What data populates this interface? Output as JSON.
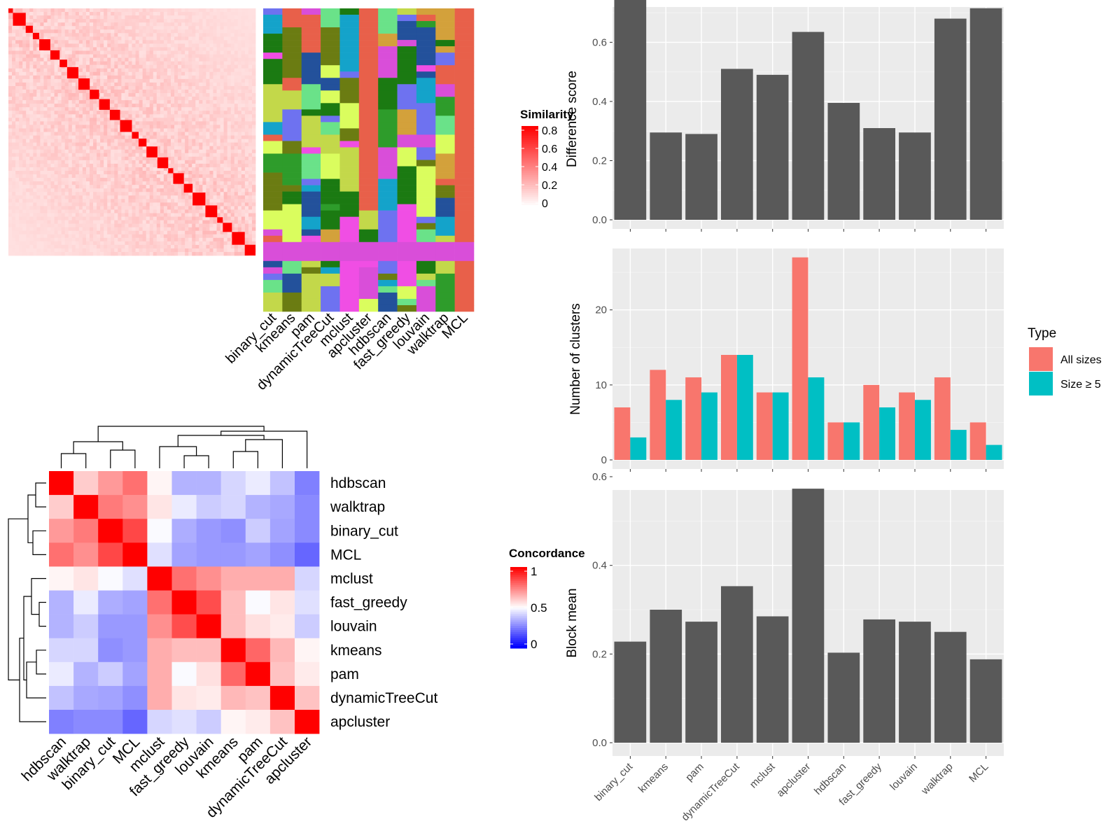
{
  "colors": {
    "panel_bg": "#ebebeb",
    "grid_major": "#ffffff",
    "bar_dark": "#595959",
    "all_sizes": "#f8766d",
    "size_ge5": "#00bfc4",
    "sim_high": "#ff0000",
    "sim_low": "#ffffff",
    "conc_high": "#ff0000",
    "conc_mid": "#ffffff",
    "conc_low": "#0000ff",
    "cluster_palette": [
      "#e8604a",
      "#6b7c12",
      "#d94ed9",
      "#23519b",
      "#6ae289",
      "#2e9c2b",
      "#dafd5e",
      "#f04ee4",
      "#6e72f0",
      "#d3a13b",
      "#14a3ca",
      "#c3d84a",
      "#1b7a12"
    ]
  },
  "similarity_heatmap": {
    "legend_title": "Similarity",
    "legend_ticks": [
      "0.8",
      "0.6",
      "0.4",
      "0.2",
      "0"
    ],
    "columns": [
      "binary_cut",
      "kmeans",
      "pam",
      "dynamicTreeCut",
      "mclust",
      "apcluster",
      "hdbscan",
      "fast_greedy",
      "louvain",
      "walktrap",
      "MCL"
    ]
  },
  "concordance_heatmap": {
    "legend_title": "Concordance",
    "legend_ticks": [
      "1",
      "0.5",
      "0"
    ],
    "rows": [
      "hdbscan",
      "walktrap",
      "binary_cut",
      "MCL",
      "mclust",
      "fast_greedy",
      "louvain",
      "kmeans",
      "pam",
      "dynamicTreeCut",
      "apcluster"
    ],
    "columns": [
      "hdbscan",
      "walktrap",
      "binary_cut",
      "MCL",
      "mclust",
      "fast_greedy",
      "louvain",
      "kmeans",
      "pam",
      "dynamicTreeCut",
      "apcluster"
    ]
  },
  "bar_panels": {
    "categories": [
      "binary_cut",
      "kmeans",
      "pam",
      "dynamicTreeCut",
      "mclust",
      "apcluster",
      "hdbscan",
      "fast_greedy",
      "louvain",
      "walktrap",
      "MCL"
    ],
    "difference": {
      "ylabel": "Difference score",
      "ticks": [
        "0.0",
        "0.2",
        "0.4",
        "0.6"
      ]
    },
    "clusters": {
      "ylabel": "Number of clusters",
      "ticks": [
        "0",
        "10",
        "20"
      ],
      "legend_title": "Type",
      "legend_all": "All sizes",
      "legend_ge5": "Size ≥ 5"
    },
    "block": {
      "ylabel": "Block mean",
      "ticks": [
        "0.0",
        "0.2",
        "0.4",
        "0.6"
      ]
    }
  },
  "chart_data": [
    {
      "type": "heatmap",
      "description_label": "Similarity",
      "legend_range": [
        0,
        0.85
      ],
      "diagonal_blocks": 26,
      "columns": [
        "binary_cut",
        "kmeans",
        "pam",
        "dynamicTreeCut",
        "mclust",
        "apcluster",
        "hdbscan",
        "fast_greedy",
        "louvain",
        "walktrap",
        "MCL"
      ]
    },
    {
      "type": "heatmap",
      "title": "Concordance",
      "legend_range": [
        0,
        1
      ],
      "rows": [
        "hdbscan",
        "walktrap",
        "binary_cut",
        "MCL",
        "mclust",
        "fast_greedy",
        "louvain",
        "kmeans",
        "pam",
        "dynamicTreeCut",
        "apcluster"
      ],
      "columns": [
        "hdbscan",
        "walktrap",
        "binary_cut",
        "MCL",
        "mclust",
        "fast_greedy",
        "louvain",
        "kmeans",
        "pam",
        "dynamicTreeCut",
        "apcluster"
      ],
      "values": [
        [
          1.0,
          0.6,
          0.7,
          0.78,
          0.52,
          0.35,
          0.35,
          0.42,
          0.46,
          0.38,
          0.25
        ],
        [
          0.6,
          1.0,
          0.76,
          0.72,
          0.55,
          0.46,
          0.4,
          0.42,
          0.35,
          0.33,
          0.27
        ],
        [
          0.7,
          0.76,
          1.0,
          0.86,
          0.49,
          0.34,
          0.3,
          0.28,
          0.4,
          0.32,
          0.27
        ],
        [
          0.78,
          0.72,
          0.86,
          1.0,
          0.44,
          0.32,
          0.3,
          0.3,
          0.32,
          0.28,
          0.2
        ],
        [
          0.52,
          0.55,
          0.49,
          0.44,
          1.0,
          0.78,
          0.72,
          0.66,
          0.66,
          0.66,
          0.42
        ],
        [
          0.35,
          0.46,
          0.34,
          0.32,
          0.78,
          1.0,
          0.85,
          0.63,
          0.49,
          0.55,
          0.44
        ],
        [
          0.35,
          0.4,
          0.3,
          0.3,
          0.72,
          0.85,
          1.0,
          0.63,
          0.56,
          0.54,
          0.4
        ],
        [
          0.42,
          0.42,
          0.28,
          0.3,
          0.66,
          0.63,
          0.63,
          1.0,
          0.8,
          0.64,
          0.52
        ],
        [
          0.46,
          0.35,
          0.4,
          0.32,
          0.66,
          0.49,
          0.56,
          0.8,
          1.0,
          0.62,
          0.54
        ],
        [
          0.38,
          0.33,
          0.32,
          0.28,
          0.66,
          0.55,
          0.54,
          0.64,
          0.62,
          1.0,
          0.62
        ],
        [
          0.25,
          0.27,
          0.27,
          0.2,
          0.42,
          0.44,
          0.4,
          0.52,
          0.54,
          0.62,
          1.0
        ]
      ]
    },
    {
      "type": "bar",
      "ylabel": "Difference score",
      "categories": [
        "binary_cut",
        "kmeans",
        "pam",
        "dynamicTreeCut",
        "mclust",
        "apcluster",
        "hdbscan",
        "fast_greedy",
        "louvain",
        "walktrap",
        "MCL"
      ],
      "values": [
        0.75,
        0.295,
        0.29,
        0.51,
        0.49,
        0.635,
        0.395,
        0.31,
        0.295,
        0.68,
        0.715
      ],
      "ylim": [
        0,
        0.75
      ]
    },
    {
      "type": "bar",
      "ylabel": "Number of clusters",
      "categories": [
        "binary_cut",
        "kmeans",
        "pam",
        "dynamicTreeCut",
        "mclust",
        "apcluster",
        "hdbscan",
        "fast_greedy",
        "louvain",
        "walktrap",
        "MCL"
      ],
      "series": [
        {
          "name": "All sizes",
          "values": [
            7,
            12,
            11,
            14,
            9,
            27,
            5,
            10,
            9,
            11,
            5
          ]
        },
        {
          "name": "Size ≥ 5",
          "values": [
            3,
            8,
            9,
            14,
            9,
            11,
            5,
            7,
            8,
            4,
            2
          ]
        }
      ],
      "legend_title": "Type",
      "ylim": [
        0,
        28
      ]
    },
    {
      "type": "bar",
      "ylabel": "Block mean",
      "categories": [
        "binary_cut",
        "kmeans",
        "pam",
        "dynamicTreeCut",
        "mclust",
        "apcluster",
        "hdbscan",
        "fast_greedy",
        "louvain",
        "walktrap",
        "MCL"
      ],
      "values": [
        0.228,
        0.3,
        0.273,
        0.353,
        0.285,
        0.573,
        0.203,
        0.278,
        0.273,
        0.25,
        0.188
      ],
      "ylim": [
        0,
        0.6
      ]
    }
  ]
}
